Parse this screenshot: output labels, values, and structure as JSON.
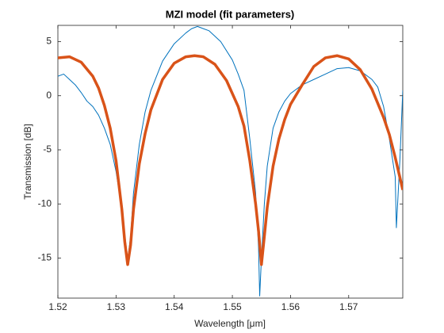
{
  "chart_data": {
    "type": "line",
    "title": "MZI model (fit parameters)",
    "xlabel": "Wavelength [μm]",
    "ylabel": "Transmission [dB]",
    "xlim": [
      1.52,
      1.5793
    ],
    "ylim": [
      -18.7,
      6.5
    ],
    "xticks": [
      1.52,
      1.53,
      1.54,
      1.55,
      1.56,
      1.57
    ],
    "yticks": [
      -15,
      -10,
      -5,
      0,
      5
    ],
    "series": [
      {
        "color": "#0072BD",
        "width": 1,
        "x": [
          1.52,
          1.521,
          1.522,
          1.523,
          1.524,
          1.525,
          1.526,
          1.527,
          1.528,
          1.529,
          1.53,
          1.531,
          1.5315,
          1.532,
          1.5325,
          1.533,
          1.534,
          1.535,
          1.536,
          1.538,
          1.54,
          1.542,
          1.543,
          1.544,
          1.545,
          1.546,
          1.548,
          1.55,
          1.551,
          1.552,
          1.553,
          1.554,
          1.5545,
          1.5547,
          1.555,
          1.5555,
          1.556,
          1.557,
          1.558,
          1.559,
          1.56,
          1.562,
          1.564,
          1.566,
          1.568,
          1.57,
          1.572,
          1.574,
          1.575,
          1.576,
          1.577,
          1.578,
          1.5782,
          1.5788,
          1.5793
        ],
        "values": [
          1.8,
          2.0,
          1.5,
          1.0,
          0.3,
          -0.5,
          -1.0,
          -1.8,
          -3.0,
          -4.5,
          -7.0,
          -10.5,
          -12.8,
          -15.2,
          -13,
          -9,
          -4.5,
          -1.5,
          0.5,
          3.2,
          4.8,
          5.8,
          6.2,
          6.4,
          6.2,
          6.0,
          5.0,
          3.3,
          2.0,
          0.5,
          -4,
          -9,
          -14,
          -18.5,
          -15,
          -10,
          -6.5,
          -3,
          -1.5,
          -0.5,
          0.2,
          1.0,
          1.5,
          2.0,
          2.5,
          2.6,
          2.3,
          1.5,
          0.8,
          -1.0,
          -4.0,
          -7.5,
          -12.2,
          -6,
          0.5
        ]
      },
      {
        "color": "#D95319",
        "width": 3.5,
        "x": [
          1.52,
          1.522,
          1.524,
          1.526,
          1.527,
          1.528,
          1.529,
          1.53,
          1.531,
          1.5315,
          1.532,
          1.5325,
          1.533,
          1.534,
          1.535,
          1.536,
          1.538,
          1.54,
          1.542,
          1.5435,
          1.545,
          1.547,
          1.549,
          1.551,
          1.552,
          1.553,
          1.554,
          1.5545,
          1.555,
          1.5555,
          1.556,
          1.557,
          1.558,
          1.559,
          1.56,
          1.562,
          1.564,
          1.566,
          1.568,
          1.57,
          1.572,
          1.574,
          1.576,
          1.577,
          1.578,
          1.579,
          1.5793
        ],
        "values": [
          3.5,
          3.6,
          3.1,
          1.8,
          0.7,
          -0.9,
          -3.0,
          -6.0,
          -10.5,
          -13.5,
          -15.6,
          -13.8,
          -10.5,
          -6.3,
          -3.5,
          -1.3,
          1.5,
          3.0,
          3.6,
          3.7,
          3.6,
          2.9,
          1.4,
          -1.0,
          -2.8,
          -6,
          -10,
          -12.5,
          -15.6,
          -13,
          -10.3,
          -6.5,
          -4,
          -2.2,
          -0.8,
          1.0,
          2.7,
          3.5,
          3.7,
          3.4,
          2.4,
          0.6,
          -2.0,
          -3.6,
          -5.7,
          -8.0,
          -8.7
        ]
      }
    ]
  }
}
